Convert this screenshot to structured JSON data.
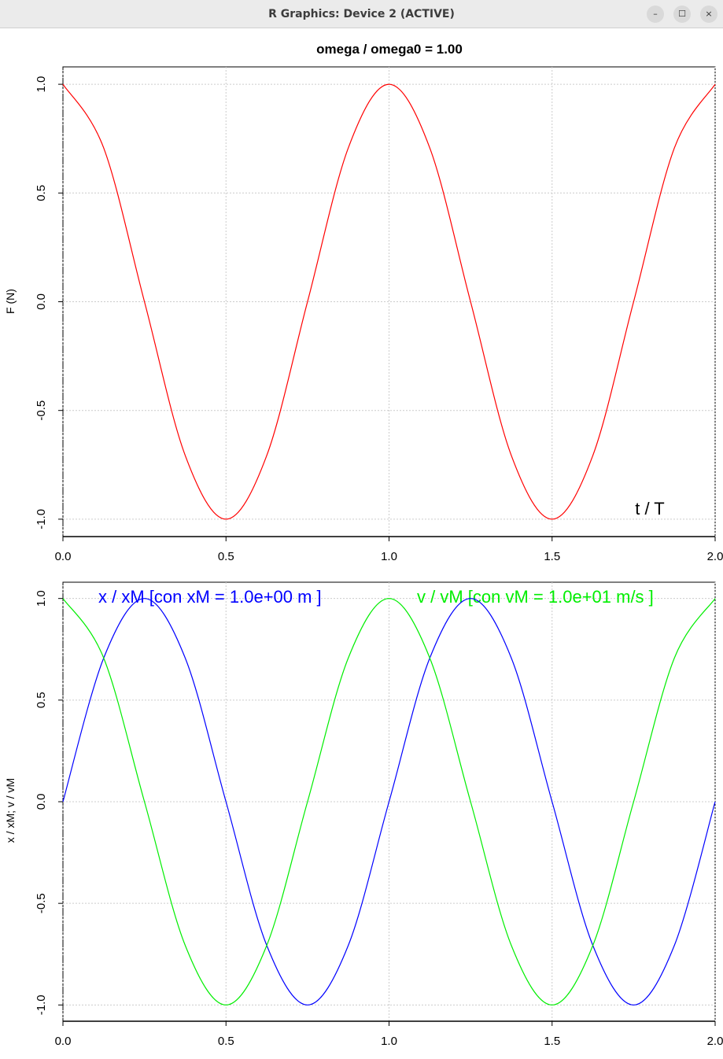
{
  "window": {
    "title": "R Graphics: Device 2 (ACTIVE)",
    "buttons": [
      {
        "name": "minimize",
        "glyph": "–"
      },
      {
        "name": "maximize",
        "glyph": "☐"
      },
      {
        "name": "close",
        "glyph": "×"
      }
    ]
  },
  "chart_data": [
    {
      "type": "line",
      "title": "omega / omega0  =  1.00",
      "xlabel": "",
      "ylabel": "F (N)",
      "annotation": "t / T",
      "xlim": [
        0,
        2
      ],
      "ylim": [
        -1.08,
        1.08
      ],
      "x_ticks": [
        "0.0",
        "0.5",
        "1.0",
        "1.5",
        "2.0"
      ],
      "y_ticks": [
        "-1.0",
        "-0.5",
        "0.0",
        "0.5",
        "1.0"
      ],
      "grid": true,
      "series": [
        {
          "color": "#ff0000",
          "x": [
            0,
            0.125,
            0.25,
            0.375,
            0.5,
            0.625,
            0.75,
            0.875,
            1.0,
            1.125,
            1.25,
            1.375,
            1.5,
            1.625,
            1.75,
            1.875,
            2.0
          ],
          "values": [
            1.0,
            0.707,
            0.0,
            -0.707,
            -1.0,
            -0.707,
            0.0,
            0.707,
            1.0,
            0.707,
            0.0,
            -0.707,
            -1.0,
            -0.707,
            0.0,
            0.707,
            1.0
          ]
        }
      ]
    },
    {
      "type": "line",
      "title": "",
      "xlabel": "",
      "ylabel": "x / xM;  v / vM",
      "xlim": [
        0,
        2
      ],
      "ylim": [
        -1.08,
        1.08
      ],
      "x_ticks": [
        "0.0",
        "0.5",
        "1.0",
        "1.5",
        "2.0"
      ],
      "y_ticks": [
        "-1.0",
        "-0.5",
        "0.0",
        "0.5",
        "1.0"
      ],
      "grid": true,
      "legend_texts": [
        {
          "text": "x / xM  [con  xM = 1.0e+00 m ]",
          "color": "#0000ff"
        },
        {
          "text": "v / vM  [con  vM = 1.0e+01 m/s ]",
          "color": "#00ee00"
        }
      ],
      "series": [
        {
          "color": "#0000ff",
          "x": [
            0,
            0.125,
            0.25,
            0.375,
            0.5,
            0.625,
            0.75,
            0.875,
            1.0,
            1.125,
            1.25,
            1.375,
            1.5,
            1.625,
            1.75,
            1.875,
            2.0
          ],
          "values": [
            0.0,
            0.707,
            1.0,
            0.707,
            0.0,
            -0.707,
            -1.0,
            -0.707,
            0.0,
            0.707,
            1.0,
            0.707,
            0.0,
            -0.707,
            -1.0,
            -0.707,
            0.0
          ]
        },
        {
          "color": "#00ee00",
          "x": [
            0,
            0.125,
            0.25,
            0.375,
            0.5,
            0.625,
            0.75,
            0.875,
            1.0,
            1.125,
            1.25,
            1.375,
            1.5,
            1.625,
            1.75,
            1.875,
            2.0
          ],
          "values": [
            1.0,
            0.707,
            0.0,
            -0.707,
            -1.0,
            -0.707,
            0.0,
            0.707,
            1.0,
            0.707,
            0.0,
            -0.707,
            -1.0,
            -0.707,
            0.0,
            0.707,
            1.0
          ]
        }
      ]
    }
  ]
}
